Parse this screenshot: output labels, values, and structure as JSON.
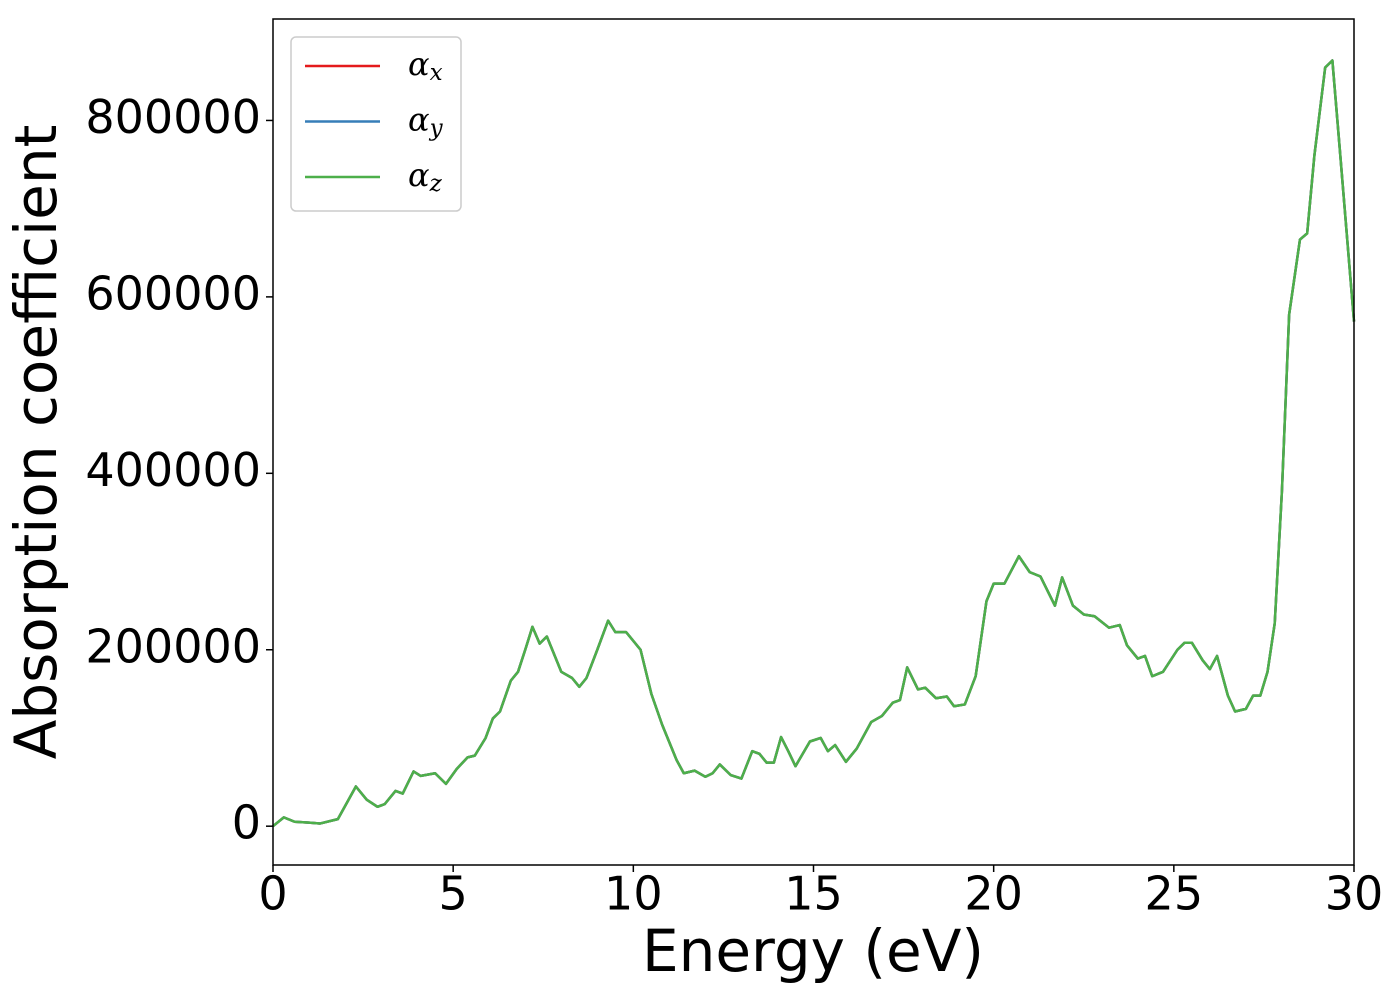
{
  "chart_data": {
    "type": "line",
    "x_label": "Energy (eV)",
    "y_label": "Absorption coefficient",
    "x": [
      0,
      0.3,
      0.6,
      1.0,
      1.3,
      1.8,
      2.3,
      2.6,
      2.9,
      3.1,
      3.4,
      3.6,
      3.9,
      4.1,
      4.5,
      4.8,
      5.1,
      5.4,
      5.6,
      5.9,
      6.1,
      6.3,
      6.6,
      6.8,
      7.0,
      7.2,
      7.4,
      7.6,
      7.8,
      8.0,
      8.3,
      8.5,
      8.7,
      9.0,
      9.3,
      9.5,
      9.8,
      10.2,
      10.5,
      10.8,
      11.2,
      11.4,
      11.7,
      12.0,
      12.2,
      12.4,
      12.7,
      13.0,
      13.3,
      13.5,
      13.7,
      13.9,
      14.1,
      14.3,
      14.5,
      14.9,
      15.2,
      15.4,
      15.6,
      15.9,
      16.2,
      16.6,
      16.9,
      17.2,
      17.4,
      17.6,
      17.9,
      18.1,
      18.4,
      18.7,
      18.9,
      19.2,
      19.5,
      19.8,
      20.0,
      20.3,
      20.7,
      21.0,
      21.3,
      21.7,
      21.9,
      22.2,
      22.5,
      22.8,
      23.2,
      23.5,
      23.7,
      24.0,
      24.2,
      24.4,
      24.7,
      25.1,
      25.3,
      25.5,
      25.8,
      26.0,
      26.2,
      26.5,
      26.7,
      27.0,
      27.2,
      27.4,
      27.6,
      27.8,
      28.0,
      28.2,
      28.5,
      28.7,
      28.9,
      29.2,
      29.4,
      29.6,
      30.0
    ],
    "series": [
      {
        "name": "αx",
        "color": "#e41a1c",
        "values": [
          0,
          10000,
          5000,
          4000,
          3000,
          8000,
          45000,
          30000,
          22000,
          25000,
          40000,
          37000,
          62000,
          57000,
          60000,
          48000,
          65000,
          78000,
          80000,
          100000,
          122000,
          130000,
          165000,
          175000,
          200000,
          226000,
          207000,
          215000,
          195000,
          175000,
          168000,
          158000,
          168000,
          200000,
          233000,
          220000,
          220000,
          200000,
          150000,
          115000,
          75000,
          60000,
          63000,
          56000,
          60000,
          70000,
          58000,
          54000,
          85000,
          82000,
          72000,
          72000,
          101000,
          85000,
          68000,
          96000,
          100000,
          85000,
          92000,
          73000,
          88000,
          118000,
          125000,
          140000,
          143000,
          180000,
          155000,
          157000,
          145000,
          147000,
          136000,
          138000,
          170000,
          255000,
          275000,
          275000,
          306000,
          288000,
          283000,
          250000,
          282000,
          250000,
          240000,
          238000,
          225000,
          228000,
          205000,
          190000,
          193000,
          170000,
          175000,
          200000,
          208000,
          208000,
          188000,
          178000,
          193000,
          148000,
          130000,
          133000,
          148000,
          148000,
          175000,
          230000,
          380000,
          580000,
          665000,
          672000,
          760000,
          860000,
          868000,
          770000,
          572000
        ]
      },
      {
        "name": "αy",
        "color": "#377eb8",
        "values": [
          0,
          10000,
          5000,
          4000,
          3000,
          8000,
          45000,
          30000,
          22000,
          25000,
          40000,
          37000,
          62000,
          57000,
          60000,
          48000,
          65000,
          78000,
          80000,
          100000,
          122000,
          130000,
          165000,
          175000,
          200000,
          226000,
          207000,
          215000,
          195000,
          175000,
          168000,
          158000,
          168000,
          200000,
          233000,
          220000,
          220000,
          200000,
          150000,
          115000,
          75000,
          60000,
          63000,
          56000,
          60000,
          70000,
          58000,
          54000,
          85000,
          82000,
          72000,
          72000,
          101000,
          85000,
          68000,
          96000,
          100000,
          85000,
          92000,
          73000,
          88000,
          118000,
          125000,
          140000,
          143000,
          180000,
          155000,
          157000,
          145000,
          147000,
          136000,
          138000,
          170000,
          255000,
          275000,
          275000,
          306000,
          288000,
          283000,
          250000,
          282000,
          250000,
          240000,
          238000,
          225000,
          228000,
          205000,
          190000,
          193000,
          170000,
          175000,
          200000,
          208000,
          208000,
          188000,
          178000,
          193000,
          148000,
          130000,
          133000,
          148000,
          148000,
          175000,
          230000,
          380000,
          580000,
          665000,
          672000,
          760000,
          860000,
          868000,
          770000,
          572000
        ]
      },
      {
        "name": "αz",
        "color": "#4daf4a",
        "values": [
          0,
          10000,
          5000,
          4000,
          3000,
          8000,
          45000,
          30000,
          22000,
          25000,
          40000,
          37000,
          62000,
          57000,
          60000,
          48000,
          65000,
          78000,
          80000,
          100000,
          122000,
          130000,
          165000,
          175000,
          200000,
          226000,
          207000,
          215000,
          195000,
          175000,
          168000,
          158000,
          168000,
          200000,
          233000,
          220000,
          220000,
          200000,
          150000,
          115000,
          75000,
          60000,
          63000,
          56000,
          60000,
          70000,
          58000,
          54000,
          85000,
          82000,
          72000,
          72000,
          101000,
          85000,
          68000,
          96000,
          100000,
          85000,
          92000,
          73000,
          88000,
          118000,
          125000,
          140000,
          143000,
          180000,
          155000,
          157000,
          145000,
          147000,
          136000,
          138000,
          170000,
          255000,
          275000,
          275000,
          306000,
          288000,
          283000,
          250000,
          282000,
          250000,
          240000,
          238000,
          225000,
          228000,
          205000,
          190000,
          193000,
          170000,
          175000,
          200000,
          208000,
          208000,
          188000,
          178000,
          193000,
          148000,
          130000,
          133000,
          148000,
          148000,
          175000,
          230000,
          380000,
          580000,
          665000,
          672000,
          760000,
          860000,
          868000,
          770000,
          572000
        ]
      }
    ],
    "xlim": [
      0,
      30
    ],
    "xticks": [
      0,
      5,
      10,
      15,
      20,
      25,
      30
    ],
    "ylim": [
      -44000,
      915000
    ],
    "yticks": [
      0,
      200000,
      400000,
      600000,
      800000
    ],
    "grid": false,
    "legend": "upper-left"
  }
}
